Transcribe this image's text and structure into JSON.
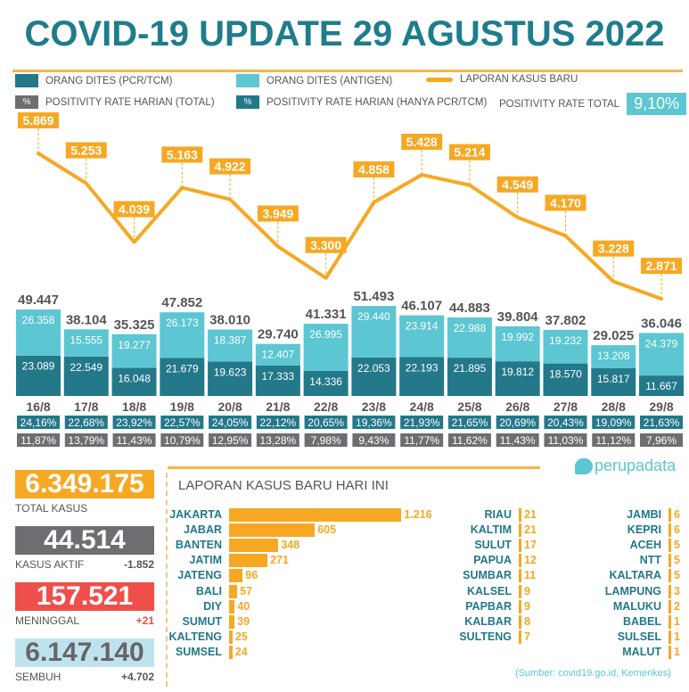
{
  "title": "COVID-19 UPDATE 29 AGUSTUS 2022",
  "legend": {
    "pcr": "ORANG DITES (PCR/TCM)",
    "antigen": "ORANG DITES (ANTIGEN)",
    "cases": "LAPORAN KASUS BARU",
    "pct_symbol": "%",
    "rate_total": "POSITIVITY RATE HARIAN (TOTAL)",
    "rate_pcr": "POSITIVITY RATE HARIAN (HANYA PCR/TCM)",
    "overall_label": "POSITIVITY RATE TOTAL",
    "overall_value": "9,10%"
  },
  "colors": {
    "pcr": "#23788a",
    "antigen": "#5cc6d3",
    "cases": "#f7a823",
    "gray": "#6d6e71",
    "red": "#ef4f4b",
    "lightblue": "#bfe3ee"
  },
  "chart_data": {
    "type": "bar+line",
    "categories": [
      "16/8",
      "17/8",
      "18/8",
      "19/8",
      "20/8",
      "21/8",
      "22/8",
      "23/8",
      "24/8",
      "25/8",
      "26/8",
      "27/8",
      "28/8",
      "29/8"
    ],
    "series": [
      {
        "name": "ORANG DITES (PCR/TCM)",
        "type": "bar",
        "values": [
          23089,
          22549,
          16048,
          21679,
          19623,
          17333,
          14336,
          22053,
          22193,
          21895,
          19812,
          18570,
          15817,
          11667
        ],
        "labels": [
          "23.089",
          "22.549",
          "16.048",
          "21.679",
          "19.623",
          "17.333",
          "14.336",
          "22.053",
          "22.193",
          "21.895",
          "19.812",
          "18.570",
          "15.817",
          "11.667"
        ]
      },
      {
        "name": "ORANG DITES (ANTIGEN)",
        "type": "bar",
        "values": [
          26358,
          15555,
          19277,
          26173,
          18387,
          12407,
          26995,
          29440,
          23914,
          22988,
          19992,
          19232,
          13208,
          24379
        ],
        "labels": [
          "26.358",
          "15.555",
          "19.277",
          "26.173",
          "18.387",
          "12.407",
          "26.995",
          "29.440",
          "23.914",
          "22.988",
          "19.992",
          "19.232",
          "13.208",
          "24.379"
        ]
      },
      {
        "name": "LAPORAN KASUS BARU",
        "type": "line",
        "values": [
          5869,
          5253,
          4039,
          5163,
          4922,
          3949,
          3300,
          4858,
          5428,
          5214,
          4549,
          4170,
          3228,
          2871
        ],
        "labels": [
          "5.869",
          "5.253",
          "4.039",
          "5.163",
          "4.922",
          "3.949",
          "3.300",
          "4.858",
          "5.428",
          "5.214",
          "4.549",
          "4.170",
          "3.228",
          "2.871"
        ]
      }
    ],
    "totals": [
      "49.447",
      "38.104",
      "35.325",
      "47.852",
      "38.010",
      "29.740",
      "41.331",
      "51.493",
      "46.107",
      "44.883",
      "39.804",
      "37.802",
      "29.025",
      "36.046"
    ],
    "rate_pcr": [
      "24,16%",
      "22,68%",
      "23,92%",
      "22,57%",
      "24,05%",
      "22,12%",
      "20,65%",
      "19,36%",
      "21,93%",
      "21,65%",
      "20,69%",
      "20,43%",
      "19,09%",
      "21,63%"
    ],
    "rate_total": [
      "11,87%",
      "13,79%",
      "11,43%",
      "10,79%",
      "12,95%",
      "13,28%",
      "7,98%",
      "9,43%",
      "11,77%",
      "11,62%",
      "11,43%",
      "11,03%",
      "11,12%",
      "7,96%"
    ]
  },
  "stats": [
    {
      "value": "6.349.175",
      "label": "TOTAL KASUS",
      "change": ""
    },
    {
      "value": "44.514",
      "label": "KASUS AKTIF",
      "change": "-1.852"
    },
    {
      "value": "157.521",
      "label": "MENINGGAL",
      "change": "+21"
    },
    {
      "value": "6.147.140",
      "label": "SEMBUH",
      "change": "+4.702"
    }
  ],
  "provinces": {
    "title": "LAPORAN KASUS BARU HARI INI",
    "col1": [
      {
        "name": "JAKARTA",
        "value": 1216,
        "label": "1.216"
      },
      {
        "name": "JABAR",
        "value": 605,
        "label": "605"
      },
      {
        "name": "BANTEN",
        "value": 348,
        "label": "348"
      },
      {
        "name": "JATIM",
        "value": 271,
        "label": "271"
      },
      {
        "name": "JATENG",
        "value": 96,
        "label": "96"
      },
      {
        "name": "BALI",
        "value": 57,
        "label": "57"
      },
      {
        "name": "DIY",
        "value": 40,
        "label": "40"
      },
      {
        "name": "SUMUT",
        "value": 39,
        "label": "39"
      },
      {
        "name": "KALTENG",
        "value": 25,
        "label": "25"
      },
      {
        "name": "SUMSEL",
        "value": 24,
        "label": "24"
      }
    ],
    "col2": [
      {
        "name": "RIAU",
        "value": 21,
        "label": "21"
      },
      {
        "name": "KALTIM",
        "value": 21,
        "label": "21"
      },
      {
        "name": "SULUT",
        "value": 17,
        "label": "17"
      },
      {
        "name": "PAPUA",
        "value": 12,
        "label": "12"
      },
      {
        "name": "SUMBAR",
        "value": 11,
        "label": "11"
      },
      {
        "name": "KALSEL",
        "value": 9,
        "label": "9"
      },
      {
        "name": "PAPBAR",
        "value": 9,
        "label": "9"
      },
      {
        "name": "KALBAR",
        "value": 8,
        "label": "8"
      },
      {
        "name": "SULTENG",
        "value": 7,
        "label": "7"
      }
    ],
    "col3": [
      {
        "name": "JAMBI",
        "value": 6,
        "label": "6"
      },
      {
        "name": "KEPRI",
        "value": 6,
        "label": "6"
      },
      {
        "name": "ACEH",
        "value": 5,
        "label": "5"
      },
      {
        "name": "NTT",
        "value": 5,
        "label": "5"
      },
      {
        "name": "KALTARA",
        "value": 5,
        "label": "5"
      },
      {
        "name": "LAMPUNG",
        "value": 3,
        "label": "3"
      },
      {
        "name": "MALUKU",
        "value": 2,
        "label": "2"
      },
      {
        "name": "BABEL",
        "value": 1,
        "label": "1"
      },
      {
        "name": "SULSEL",
        "value": 1,
        "label": "1"
      },
      {
        "name": "MALUT",
        "value": 1,
        "label": "1"
      }
    ]
  },
  "source": "(Sumber: covid19.go.id, Kemenkes)",
  "logo": "perupadata"
}
